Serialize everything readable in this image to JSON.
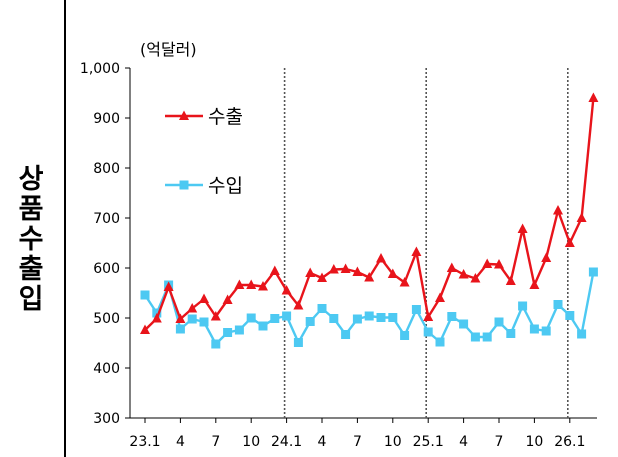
{
  "side_title": [
    "상",
    "품",
    "수",
    "출",
    "입"
  ],
  "chart_data": {
    "type": "line",
    "unit_label": "(억달러)",
    "ylim": [
      300,
      1000
    ],
    "yticks": [
      "1,000",
      "900",
      "800",
      "700",
      "600",
      "500",
      "400",
      "300"
    ],
    "ytick_values": [
      1000,
      900,
      800,
      700,
      600,
      500,
      400,
      300
    ],
    "xticks": [
      {
        "i": 0,
        "label": "23.1"
      },
      {
        "i": 3,
        "label": "4"
      },
      {
        "i": 6,
        "label": "7"
      },
      {
        "i": 9,
        "label": "10"
      },
      {
        "i": 12,
        "label": "24.1"
      },
      {
        "i": 15,
        "label": "4"
      },
      {
        "i": 18,
        "label": "7"
      },
      {
        "i": 21,
        "label": "10"
      },
      {
        "i": 24,
        "label": "25.1"
      },
      {
        "i": 27,
        "label": "4"
      },
      {
        "i": 30,
        "label": "7"
      },
      {
        "i": 33,
        "label": "10"
      },
      {
        "i": 36,
        "label": "26.1"
      }
    ],
    "year_separators": [
      12,
      24,
      36
    ],
    "grid": false,
    "legend_position": "upper-left",
    "series": [
      {
        "name": "수출",
        "color": "#e8141b",
        "marker": "triangle",
        "values": [
          476,
          499,
          562,
          498,
          519,
          538,
          503,
          536,
          566,
          566,
          563,
          594,
          555,
          525,
          590,
          580,
          597,
          598,
          592,
          581,
          619,
          588,
          571,
          632,
          502,
          540,
          600,
          587,
          579,
          608,
          607,
          574,
          678,
          566,
          620,
          715,
          650,
          700,
          940
        ]
      },
      {
        "name": "수입",
        "color": "#4dc9f2",
        "marker": "square",
        "values": [
          546,
          510,
          566,
          478,
          498,
          492,
          448,
          471,
          476,
          500,
          484,
          499,
          504,
          451,
          493,
          519,
          499,
          467,
          498,
          504,
          501,
          501,
          465,
          517,
          472,
          452,
          503,
          488,
          462,
          462,
          492,
          469,
          524,
          478,
          474,
          527,
          505,
          468,
          592
        ]
      }
    ]
  }
}
